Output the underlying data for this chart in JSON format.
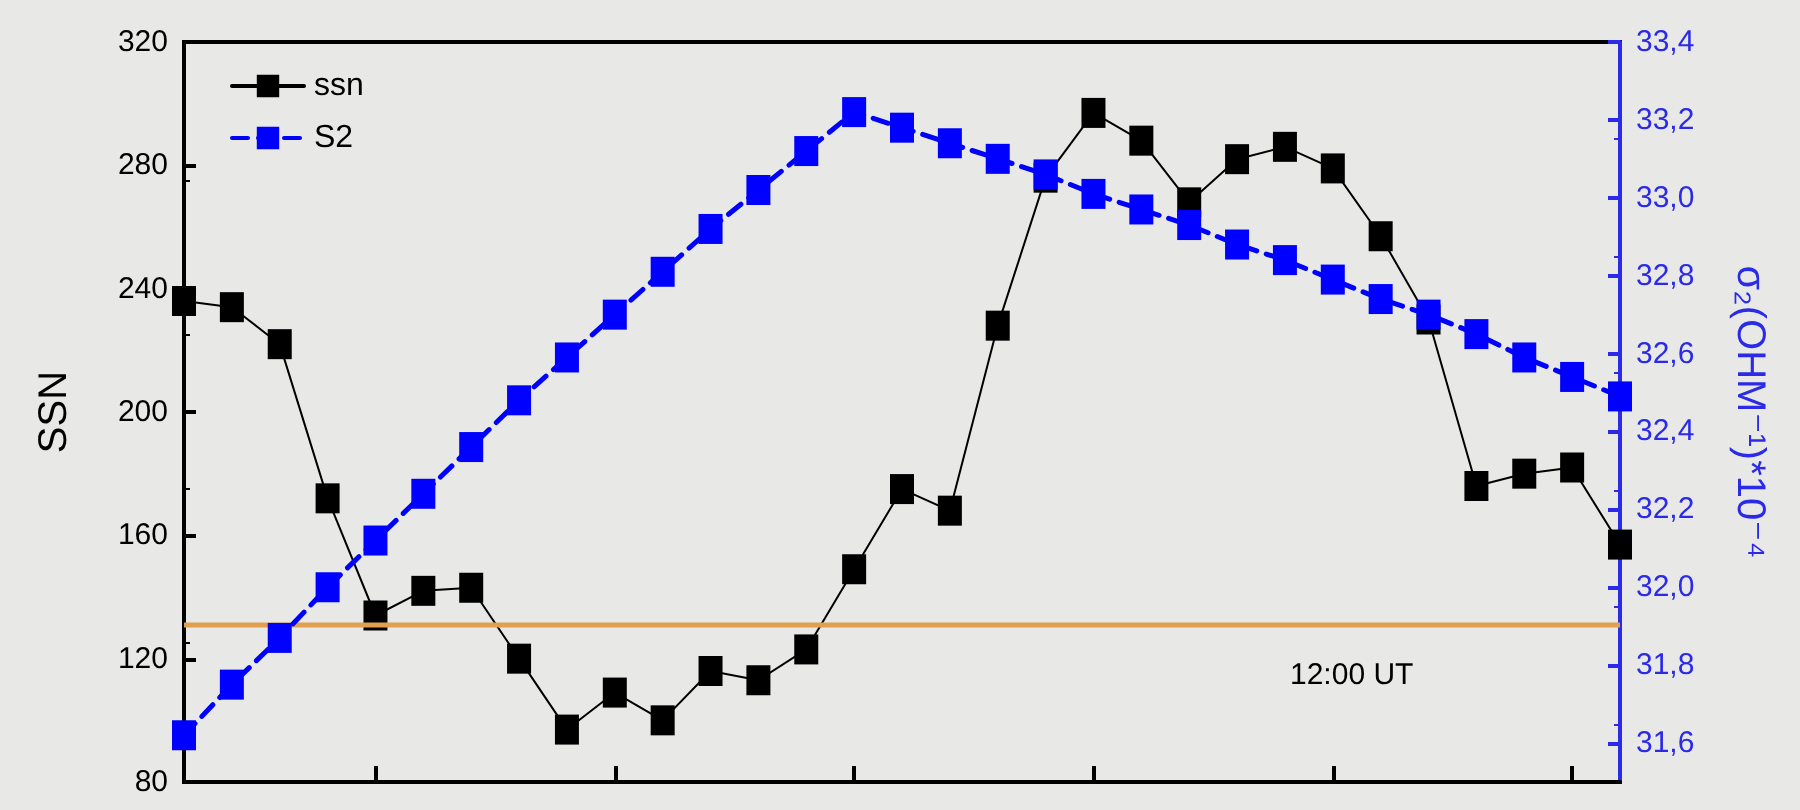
{
  "chart_data": {
    "type": "line",
    "ylabel": "SSN",
    "y2label": "σ₂(OHM⁻¹)*10⁻⁴",
    "categories": [
      null,
      null,
      null,
      null,
      null,
      null,
      null,
      null,
      null,
      null,
      null,
      null,
      null,
      null,
      null,
      null,
      null,
      null,
      null,
      null,
      null,
      null,
      null,
      null,
      null,
      null,
      null,
      null,
      null,
      null,
      null
    ],
    "series": [
      {
        "name": "ssn",
        "color": "#000000",
        "line_style": "solid",
        "values": [
          236,
          234,
          222,
          172,
          134,
          142,
          143,
          120,
          97,
          109,
          100,
          116,
          113,
          123,
          149,
          175,
          168,
          228,
          276,
          297,
          288,
          268,
          282,
          286,
          279,
          257,
          230,
          176,
          180,
          182,
          157
        ]
      },
      {
        "name": "S2",
        "color": "#0000ff",
        "axis": "y2",
        "line_style": "dashed",
        "values": [
          31.62,
          31.75,
          31.87,
          32.0,
          32.12,
          32.24,
          32.36,
          32.48,
          32.59,
          32.7,
          32.81,
          32.92,
          33.02,
          33.12,
          33.22,
          33.18,
          33.14,
          33.1,
          33.06,
          33.01,
          32.97,
          32.93,
          32.88,
          32.84,
          32.79,
          32.74,
          32.7,
          32.65,
          32.59,
          32.54,
          32.49
        ]
      }
    ],
    "ylim": [
      80,
      320
    ],
    "yticks": [
      80,
      120,
      160,
      200,
      240,
      280,
      320
    ],
    "y2lim": [
      31.5,
      33.4
    ],
    "y2ticks": [
      {
        "value": 31.6,
        "label": "31,6"
      },
      {
        "value": 31.8,
        "label": "31,8"
      },
      {
        "value": 32.0,
        "label": "32,0"
      },
      {
        "value": 32.2,
        "label": "32,2"
      },
      {
        "value": 32.4,
        "label": "32,4"
      },
      {
        "value": 32.6,
        "label": "32,6"
      },
      {
        "value": 32.8,
        "label": "32,8"
      },
      {
        "value": 33.0,
        "label": "33,0"
      },
      {
        "value": 33.2,
        "label": "33,2"
      },
      {
        "value": 33.4,
        "label": "33,4"
      }
    ],
    "ref_lines": [
      {
        "axis": "y",
        "value": 131,
        "color": "#e0a050"
      }
    ],
    "annotations": [
      "12:00 UT"
    ],
    "marker": "square",
    "legend": "top left",
    "grid": false,
    "tick_labels": "y"
  }
}
